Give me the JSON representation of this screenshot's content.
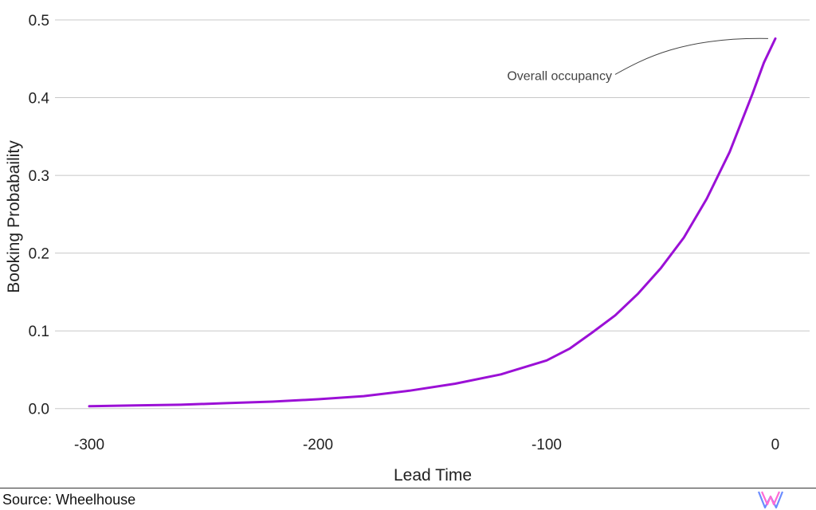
{
  "chart_data": {
    "type": "line",
    "title": "",
    "xlabel": "Lead Time",
    "ylabel": "Booking Probabaility",
    "xlim": [
      -315,
      15
    ],
    "ylim": [
      -0.03,
      0.5
    ],
    "xticks": [
      -300,
      -200,
      -100,
      0
    ],
    "yticks": [
      0.0,
      0.1,
      0.2,
      0.3,
      0.4,
      0.5
    ],
    "xtick_labels": [
      "-300",
      "-200",
      "-100",
      "0"
    ],
    "ytick_labels": [
      "0.0",
      "0.1",
      "0.2",
      "0.3",
      "0.4",
      "0.5"
    ],
    "grid": "horizontal",
    "series": [
      {
        "color": "#9b10d6",
        "x": [
          -300,
          -280,
          -260,
          -240,
          -220,
          -200,
          -180,
          -160,
          -140,
          -120,
          -100,
          -90,
          -80,
          -70,
          -60,
          -50,
          -40,
          -30,
          -20,
          -10,
          -5,
          0
        ],
        "y": [
          0.003,
          0.004,
          0.005,
          0.007,
          0.009,
          0.012,
          0.016,
          0.023,
          0.032,
          0.044,
          0.062,
          0.077,
          0.098,
          0.12,
          0.148,
          0.181,
          0.22,
          0.27,
          0.33,
          0.405,
          0.445,
          0.476
        ]
      }
    ],
    "annotation": {
      "text": "Overall occupancy",
      "x": 0,
      "y": 0.476,
      "color": "#444444"
    }
  },
  "footer": {
    "source": "Source: Wheelhouse"
  },
  "logo": {
    "name": "wheelhouse-logo-icon",
    "colors": [
      "#6a8cff",
      "#ff6ad5"
    ]
  }
}
